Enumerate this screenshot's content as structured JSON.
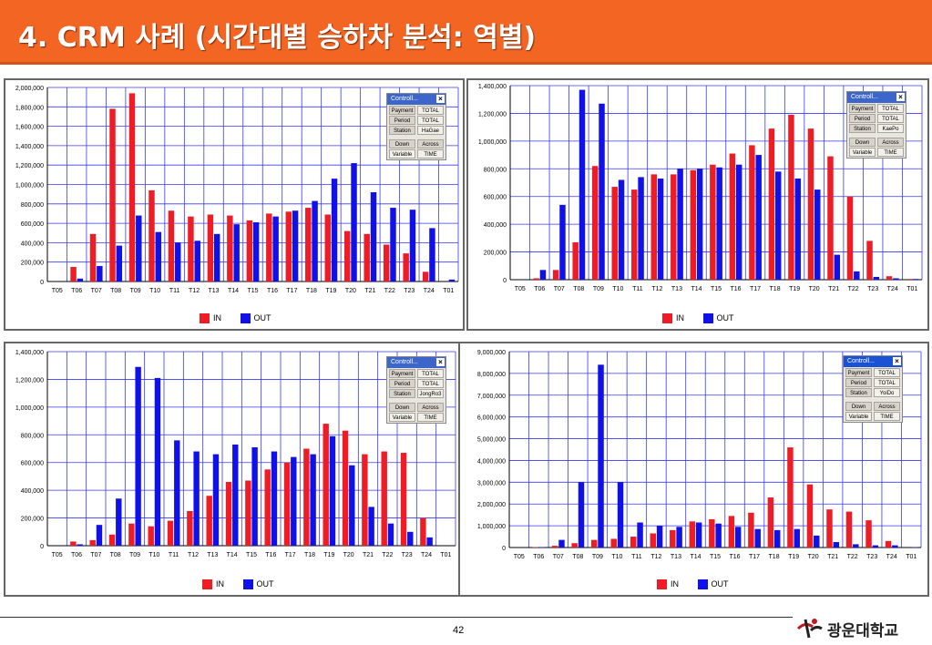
{
  "slide": {
    "title": "4. CRM 사례 (시간대별 승하차 분석: 역별)",
    "page_number": "42",
    "logo_text": "광운대학교"
  },
  "colors": {
    "in": "#ee1c25",
    "out": "#1010e8",
    "title_bg": "#f26522",
    "grid": "#3a3af0"
  },
  "legend": {
    "in_label": "IN",
    "out_label": "OUT"
  },
  "controller": {
    "title": "Controll...",
    "close": "×",
    "payment_label": "Payment",
    "period_label": "Period",
    "station_label": "Station",
    "down_label": "Down",
    "across_label": "Across",
    "variable_label": "Variable",
    "payment_value": "TOTAL",
    "period_value": "TOTAL",
    "across_value": "TIME"
  },
  "chart_data": [
    {
      "type": "bar",
      "station": "HaGae",
      "categories": [
        "T05",
        "T06",
        "T07",
        "T08",
        "T09",
        "T10",
        "T11",
        "T12",
        "T13",
        "T14",
        "T15",
        "T16",
        "T17",
        "T18",
        "T19",
        "T20",
        "T21",
        "T22",
        "T23",
        "T24",
        "T01"
      ],
      "ylim": [
        0,
        2000000
      ],
      "yticks": [
        "0",
        "200,000",
        "400,000",
        "600,000",
        "800,000",
        "1,000,000",
        "1,200,000",
        "1,400,000",
        "1,600,000",
        "1,800,000",
        "2,000,000"
      ],
      "series": [
        {
          "name": "IN",
          "values": [
            0,
            150000,
            490000,
            1780000,
            1940000,
            940000,
            730000,
            670000,
            690000,
            680000,
            630000,
            700000,
            720000,
            760000,
            690000,
            520000,
            490000,
            380000,
            290000,
            100000,
            0
          ]
        },
        {
          "name": "OUT",
          "values": [
            0,
            30000,
            160000,
            370000,
            680000,
            510000,
            400000,
            420000,
            490000,
            590000,
            610000,
            670000,
            730000,
            830000,
            1060000,
            1220000,
            920000,
            760000,
            740000,
            550000,
            20000
          ]
        }
      ]
    },
    {
      "type": "bar",
      "station": "KaePo",
      "categories": [
        "T05",
        "T06",
        "T07",
        "T08",
        "T09",
        "T10",
        "T11",
        "T12",
        "T13",
        "T14",
        "T15",
        "T16",
        "T17",
        "T18",
        "T19",
        "T20",
        "T21",
        "T22",
        "T23",
        "T24",
        "T01"
      ],
      "ylim": [
        0,
        1400000
      ],
      "yticks": [
        "0",
        "200,000",
        "400,000",
        "600,000",
        "800,000",
        "1,000,000",
        "1,200,000",
        "1,400,000"
      ],
      "series": [
        {
          "name": "IN",
          "values": [
            0,
            10000,
            70000,
            270000,
            820000,
            670000,
            650000,
            760000,
            760000,
            790000,
            830000,
            910000,
            970000,
            1090000,
            1190000,
            1090000,
            890000,
            600000,
            280000,
            25000,
            5000
          ]
        },
        {
          "name": "OUT",
          "values": [
            0,
            70000,
            540000,
            1370000,
            1270000,
            720000,
            740000,
            730000,
            800000,
            800000,
            810000,
            830000,
            900000,
            780000,
            730000,
            650000,
            180000,
            60000,
            20000,
            10000,
            5000
          ]
        }
      ]
    },
    {
      "type": "bar",
      "station": "JongRo3",
      "categories": [
        "T05",
        "T06",
        "T07",
        "T08",
        "T09",
        "T10",
        "T11",
        "T12",
        "T13",
        "T14",
        "T15",
        "T16",
        "T17",
        "T18",
        "T19",
        "T20",
        "T21",
        "T22",
        "T23",
        "T24",
        "T01"
      ],
      "ylim": [
        0,
        1400000
      ],
      "yticks": [
        "0",
        "200,000",
        "400,000",
        "600,000",
        "800,000",
        "1,000,000",
        "1,200,000",
        "1,400,000"
      ],
      "series": [
        {
          "name": "IN",
          "values": [
            0,
            30000,
            40000,
            80000,
            160000,
            140000,
            180000,
            250000,
            360000,
            460000,
            470000,
            550000,
            600000,
            700000,
            880000,
            830000,
            660000,
            680000,
            670000,
            200000,
            0
          ]
        },
        {
          "name": "OUT",
          "values": [
            0,
            10000,
            150000,
            340000,
            1290000,
            1210000,
            760000,
            680000,
            660000,
            730000,
            710000,
            680000,
            640000,
            660000,
            790000,
            580000,
            280000,
            160000,
            100000,
            60000,
            0
          ]
        }
      ]
    },
    {
      "type": "bar",
      "station": "YoiDo",
      "categories": [
        "T05",
        "T06",
        "T07",
        "T08",
        "T09",
        "T10",
        "T11",
        "T12",
        "T13",
        "T14",
        "T15",
        "T16",
        "T17",
        "T18",
        "T19",
        "T20",
        "T21",
        "T22",
        "T23",
        "T24",
        "T01"
      ],
      "ylim": [
        0,
        9000000
      ],
      "yticks": [
        "0",
        "1,000,000",
        "2,000,000",
        "3,000,000",
        "4,000,000",
        "5,000,000",
        "6,000,000",
        "7,000,000",
        "8,000,000",
        "9,000,000"
      ],
      "series": [
        {
          "name": "IN",
          "values": [
            0,
            20000,
            80000,
            200000,
            350000,
            400000,
            500000,
            650000,
            800000,
            1200000,
            1300000,
            1450000,
            1600000,
            2300000,
            4600000,
            2900000,
            1750000,
            1650000,
            1250000,
            300000,
            0
          ]
        },
        {
          "name": "OUT",
          "values": [
            0,
            20000,
            350000,
            3000000,
            8400000,
            3000000,
            1150000,
            1000000,
            950000,
            1150000,
            1100000,
            950000,
            850000,
            800000,
            850000,
            550000,
            250000,
            150000,
            100000,
            100000,
            20000
          ]
        }
      ]
    }
  ]
}
